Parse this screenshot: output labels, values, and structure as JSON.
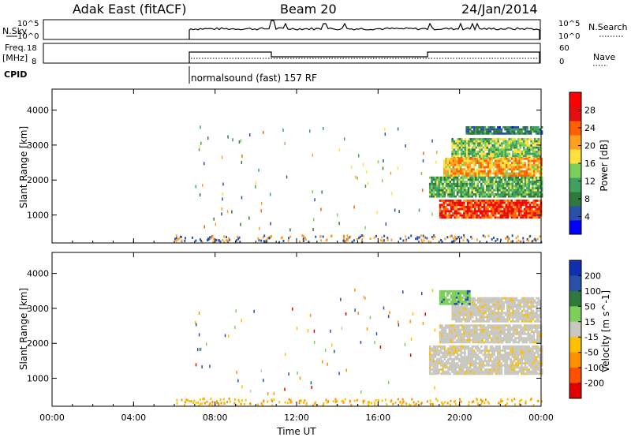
{
  "header": {
    "station": "Adak East (fitACF)",
    "beam": "Beam 20",
    "date": "24/Jan/2014"
  },
  "top_panels": {
    "nsky_label": "N.Sky",
    "nsky_ticks": [
      "10^5",
      "10^0"
    ],
    "nsearch_label": "N.Search",
    "nsearch_ticks": [
      "10^5",
      "10^0"
    ],
    "freq_label": "Freq.",
    "freq_unit": "[MHz]",
    "freq_ticks": [
      "18",
      "8"
    ],
    "nave_label": "Nave",
    "nave_ticks": [
      "60",
      "0"
    ],
    "cpid_label": "CPID",
    "cpid_text": "normalsound (fast) 157 RF"
  },
  "colors": {
    "power_scale": [
      "#0000ff",
      "#2a4fa8",
      "#2f7a3a",
      "#3fa060",
      "#7bcf5a",
      "#ffe040",
      "#ffa020",
      "#ff6000",
      "#e01010",
      "#ff0000"
    ],
    "velocity_scale": [
      "#1030b0",
      "#2a4fa8",
      "#2f7a3a",
      "#7bcf5a",
      "#c8c8c0",
      "#ffc000",
      "#ff9000",
      "#ff5000",
      "#e00000"
    ]
  },
  "chart_data": [
    {
      "type": "heatmap",
      "panel": "power",
      "ylabel": "Slant Range [km]",
      "yticks": [
        "4000",
        "3000",
        "2000",
        "1000"
      ],
      "ylim": [
        200,
        4600
      ],
      "xlim": [
        0,
        24
      ],
      "colorbar_label": "Power [dB]",
      "colorbar_ticks": [
        "28",
        "24",
        "20",
        "16",
        "12",
        "8",
        "4"
      ],
      "colorbar_range": [
        0,
        32
      ],
      "bands": [
        {
          "t0": 20.3,
          "t1": 24,
          "r0": 3300,
          "r1": 3500,
          "level": 8
        },
        {
          "t0": 19.6,
          "t1": 24,
          "r0": 2600,
          "r1": 3200,
          "level": 14
        },
        {
          "t0": 19.2,
          "t1": 24,
          "r0": 2100,
          "r1": 2600,
          "level": 20
        },
        {
          "t0": 18.5,
          "t1": 24,
          "r0": 1500,
          "r1": 2100,
          "level": 12
        },
        {
          "t0": 19.0,
          "t1": 24,
          "r0": 900,
          "r1": 1400,
          "level": 26
        }
      ]
    },
    {
      "type": "heatmap",
      "panel": "velocity",
      "ylabel": "Slant Range [km]",
      "yticks": [
        "4000",
        "3000",
        "2000",
        "1000"
      ],
      "ylim": [
        200,
        4600
      ],
      "xlim": [
        0,
        24
      ],
      "xlabel": "Time UT",
      "xticks": [
        "00:00",
        "04:00",
        "08:00",
        "12:00",
        "16:00",
        "20:00",
        "00:00"
      ],
      "colorbar_label": "Velocity [m s^-1]",
      "colorbar_ticks": [
        "200",
        "100",
        "50",
        "15",
        "-15",
        "-50",
        "-100",
        "-200"
      ],
      "bands": [
        {
          "t0": 19.6,
          "t1": 24,
          "r0": 2600,
          "r1": 3300,
          "velocity": 0
        },
        {
          "t0": 19.0,
          "t1": 24,
          "r0": 2000,
          "r1": 2500,
          "velocity": 0
        },
        {
          "t0": 18.5,
          "t1": 24,
          "r0": 1100,
          "r1": 1900,
          "velocity": 0
        },
        {
          "t0": 19.0,
          "t1": 20.5,
          "r0": 3100,
          "r1": 3500,
          "velocity": 60
        }
      ]
    }
  ]
}
